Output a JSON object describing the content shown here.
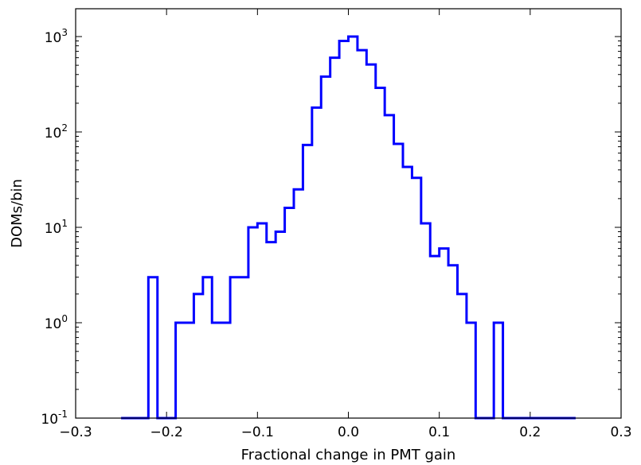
{
  "chart_data": {
    "type": "histogram",
    "title": "",
    "xlabel": "Fractional change in PMT gain",
    "ylabel": "DOMs/bin",
    "xlim": [
      -0.3,
      0.3
    ],
    "ylim": [
      0.1,
      2000
    ],
    "yscale": "log",
    "grid": false,
    "line_color": "#0000ff",
    "x_ticks": [
      -0.3,
      -0.2,
      -0.1,
      0.0,
      0.1,
      0.2,
      0.3
    ],
    "x_tick_labels": [
      "−0.3",
      "−0.2",
      "−0.1",
      "0.0",
      "0.1",
      "0.2",
      "0.3"
    ],
    "y_ticks": [
      0.1,
      1,
      10,
      100,
      1000
    ],
    "y_tick_labels": [
      {
        "base": "10",
        "exp": "-1"
      },
      {
        "base": "10",
        "exp": "0"
      },
      {
        "base": "10",
        "exp": "1"
      },
      {
        "base": "10",
        "exp": "2"
      },
      {
        "base": "10",
        "exp": "3"
      }
    ],
    "bin_width": 0.01,
    "bin_left_edges": [
      -0.25,
      -0.24,
      -0.23,
      -0.22,
      -0.21,
      -0.2,
      -0.19,
      -0.18,
      -0.17,
      -0.16,
      -0.15,
      -0.14,
      -0.13,
      -0.12,
      -0.11,
      -0.1,
      -0.09,
      -0.08,
      -0.07,
      -0.06,
      -0.05,
      -0.04,
      -0.03,
      -0.02,
      -0.01,
      0.0,
      0.01,
      0.02,
      0.03,
      0.04,
      0.05,
      0.06,
      0.07,
      0.08,
      0.09,
      0.1,
      0.11,
      0.12,
      0.13,
      0.14,
      0.15,
      0.16,
      0.17,
      0.18,
      0.19,
      0.2,
      0.21,
      0.22,
      0.23,
      0.24
    ],
    "counts": [
      0,
      0,
      0,
      3,
      0,
      0,
      1,
      1,
      2,
      3,
      1,
      1,
      3,
      3,
      10,
      11,
      7,
      9,
      16,
      25,
      73,
      180,
      380,
      600,
      900,
      1000,
      720,
      510,
      290,
      150,
      75,
      43,
      33,
      11,
      5,
      6,
      4,
      2,
      1,
      0,
      0,
      1,
      0,
      0,
      0,
      0,
      0,
      0,
      0,
      0
    ]
  }
}
